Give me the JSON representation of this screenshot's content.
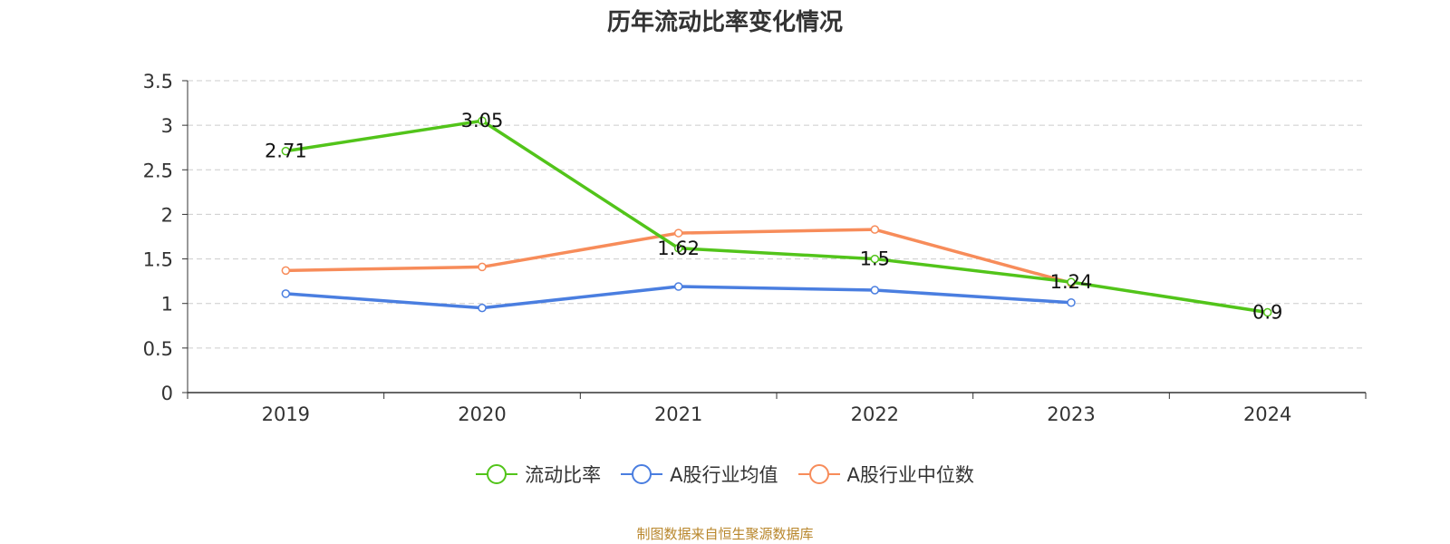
{
  "chart_data": {
    "type": "line",
    "title": "历年流动比率变化情况",
    "x": [
      "2019",
      "2020",
      "2021",
      "2022",
      "2023",
      "2024"
    ],
    "ylim": [
      0,
      3.5
    ],
    "yticks": [
      "0",
      "0.5",
      "1",
      "1.5",
      "2",
      "2.5",
      "3",
      "3.5"
    ],
    "grid": true,
    "legend_position": "bottom",
    "series": [
      {
        "name": "流动比率",
        "color": "#52c41a",
        "values": [
          2.71,
          3.05,
          1.62,
          1.5,
          1.24,
          0.9
        ],
        "labels": [
          "2.71",
          "3.05",
          "1.62",
          "1.5",
          "1.24",
          "0.9"
        ]
      },
      {
        "name": "A股行业均值",
        "color": "#4a7ee0",
        "values": [
          1.11,
          0.95,
          1.19,
          1.15,
          1.01,
          null
        ]
      },
      {
        "name": "A股行业中位数",
        "color": "#f78c5a",
        "values": [
          1.37,
          1.41,
          1.79,
          1.83,
          1.23,
          null
        ]
      }
    ]
  },
  "source_note": "制图数据来自恒生聚源数据库"
}
